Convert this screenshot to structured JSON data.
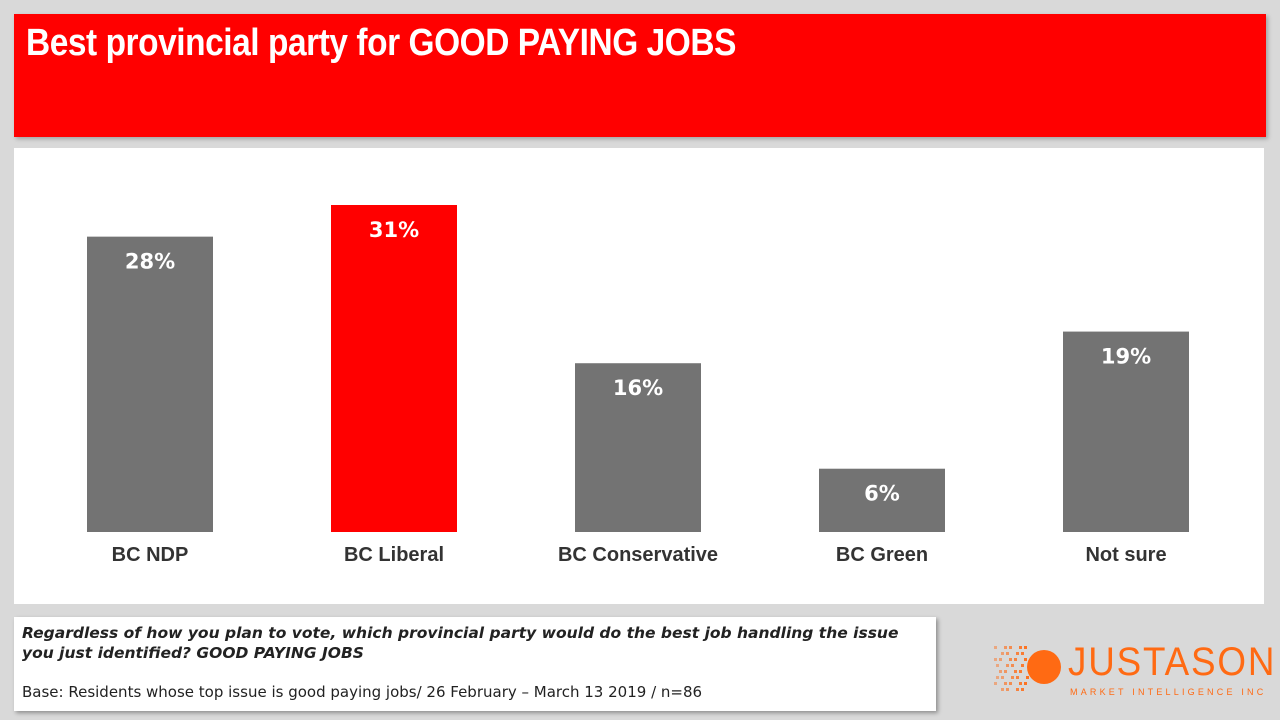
{
  "header": {
    "title": "Best provincial party for GOOD PAYING JOBS"
  },
  "chart_data": {
    "type": "bar",
    "title": "Best provincial party for GOOD PAYING JOBS",
    "categories": [
      "BC NDP",
      "BC Liberal",
      "BC Conservative",
      "BC Green",
      "Not sure"
    ],
    "values": [
      28,
      31,
      16,
      6,
      19
    ],
    "value_labels": [
      "28%",
      "31%",
      "16%",
      "6%",
      "19%"
    ],
    "bar_colors": [
      "#737373",
      "#ff0000",
      "#737373",
      "#737373",
      "#737373"
    ],
    "xlabel": "",
    "ylabel": "",
    "ylim": [
      0,
      31
    ],
    "grid": false,
    "legend": "none"
  },
  "footer": {
    "question": "Regardless of how you plan to vote, which provincial party would do the best job handling the issue you just identified? GOOD PAYING JOBS",
    "base": "Base: Residents whose top issue is good paying jobs/ 26 February – March 13 2019 / n=86"
  },
  "logo": {
    "name": "JUSTASON",
    "tagline": "MARKET INTELLIGENCE INC",
    "color": "#ff6a13"
  }
}
